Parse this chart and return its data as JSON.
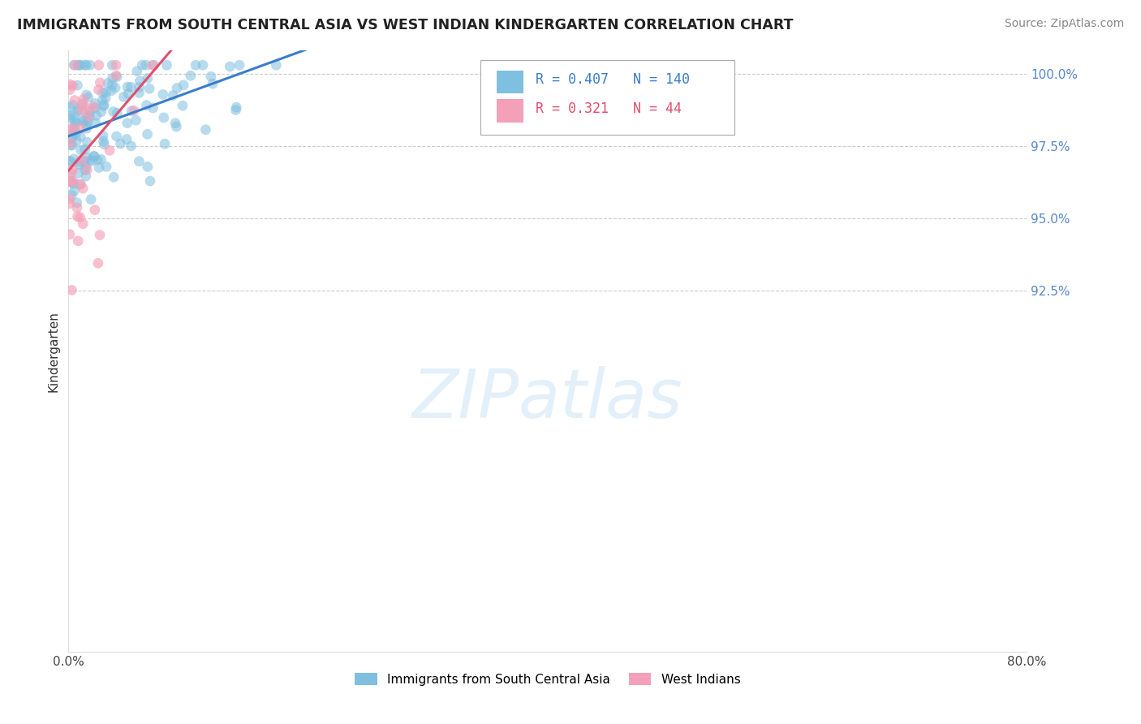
{
  "title": "IMMIGRANTS FROM SOUTH CENTRAL ASIA VS WEST INDIAN KINDERGARTEN CORRELATION CHART",
  "source": "Source: ZipAtlas.com",
  "ylabel_label": "Kindergarten",
  "legend_label1": "Immigrants from South Central Asia",
  "legend_label2": "West Indians",
  "R1": 0.407,
  "N1": 140,
  "R2": 0.321,
  "N2": 44,
  "color_blue": "#7fbfdf",
  "color_pink": "#f4a0b8",
  "color_blue_line": "#3a7dc9",
  "color_pink_line": "#e05070",
  "color_text_blue": "#3a7dc9",
  "color_text_pink": "#e05070",
  "color_ytick": "#5588cc",
  "xmin": 0.0,
  "xmax": 0.8,
  "ymin": 0.8,
  "ymax": 1.008,
  "ytick_positions": [
    0.925,
    0.95,
    0.975,
    1.0
  ],
  "ytick_labels": [
    "92.5%",
    "95.0%",
    "97.5%",
    "100.0%"
  ],
  "watermark_text": "ZIPatlas",
  "seed_blue": 42,
  "seed_pink": 99
}
